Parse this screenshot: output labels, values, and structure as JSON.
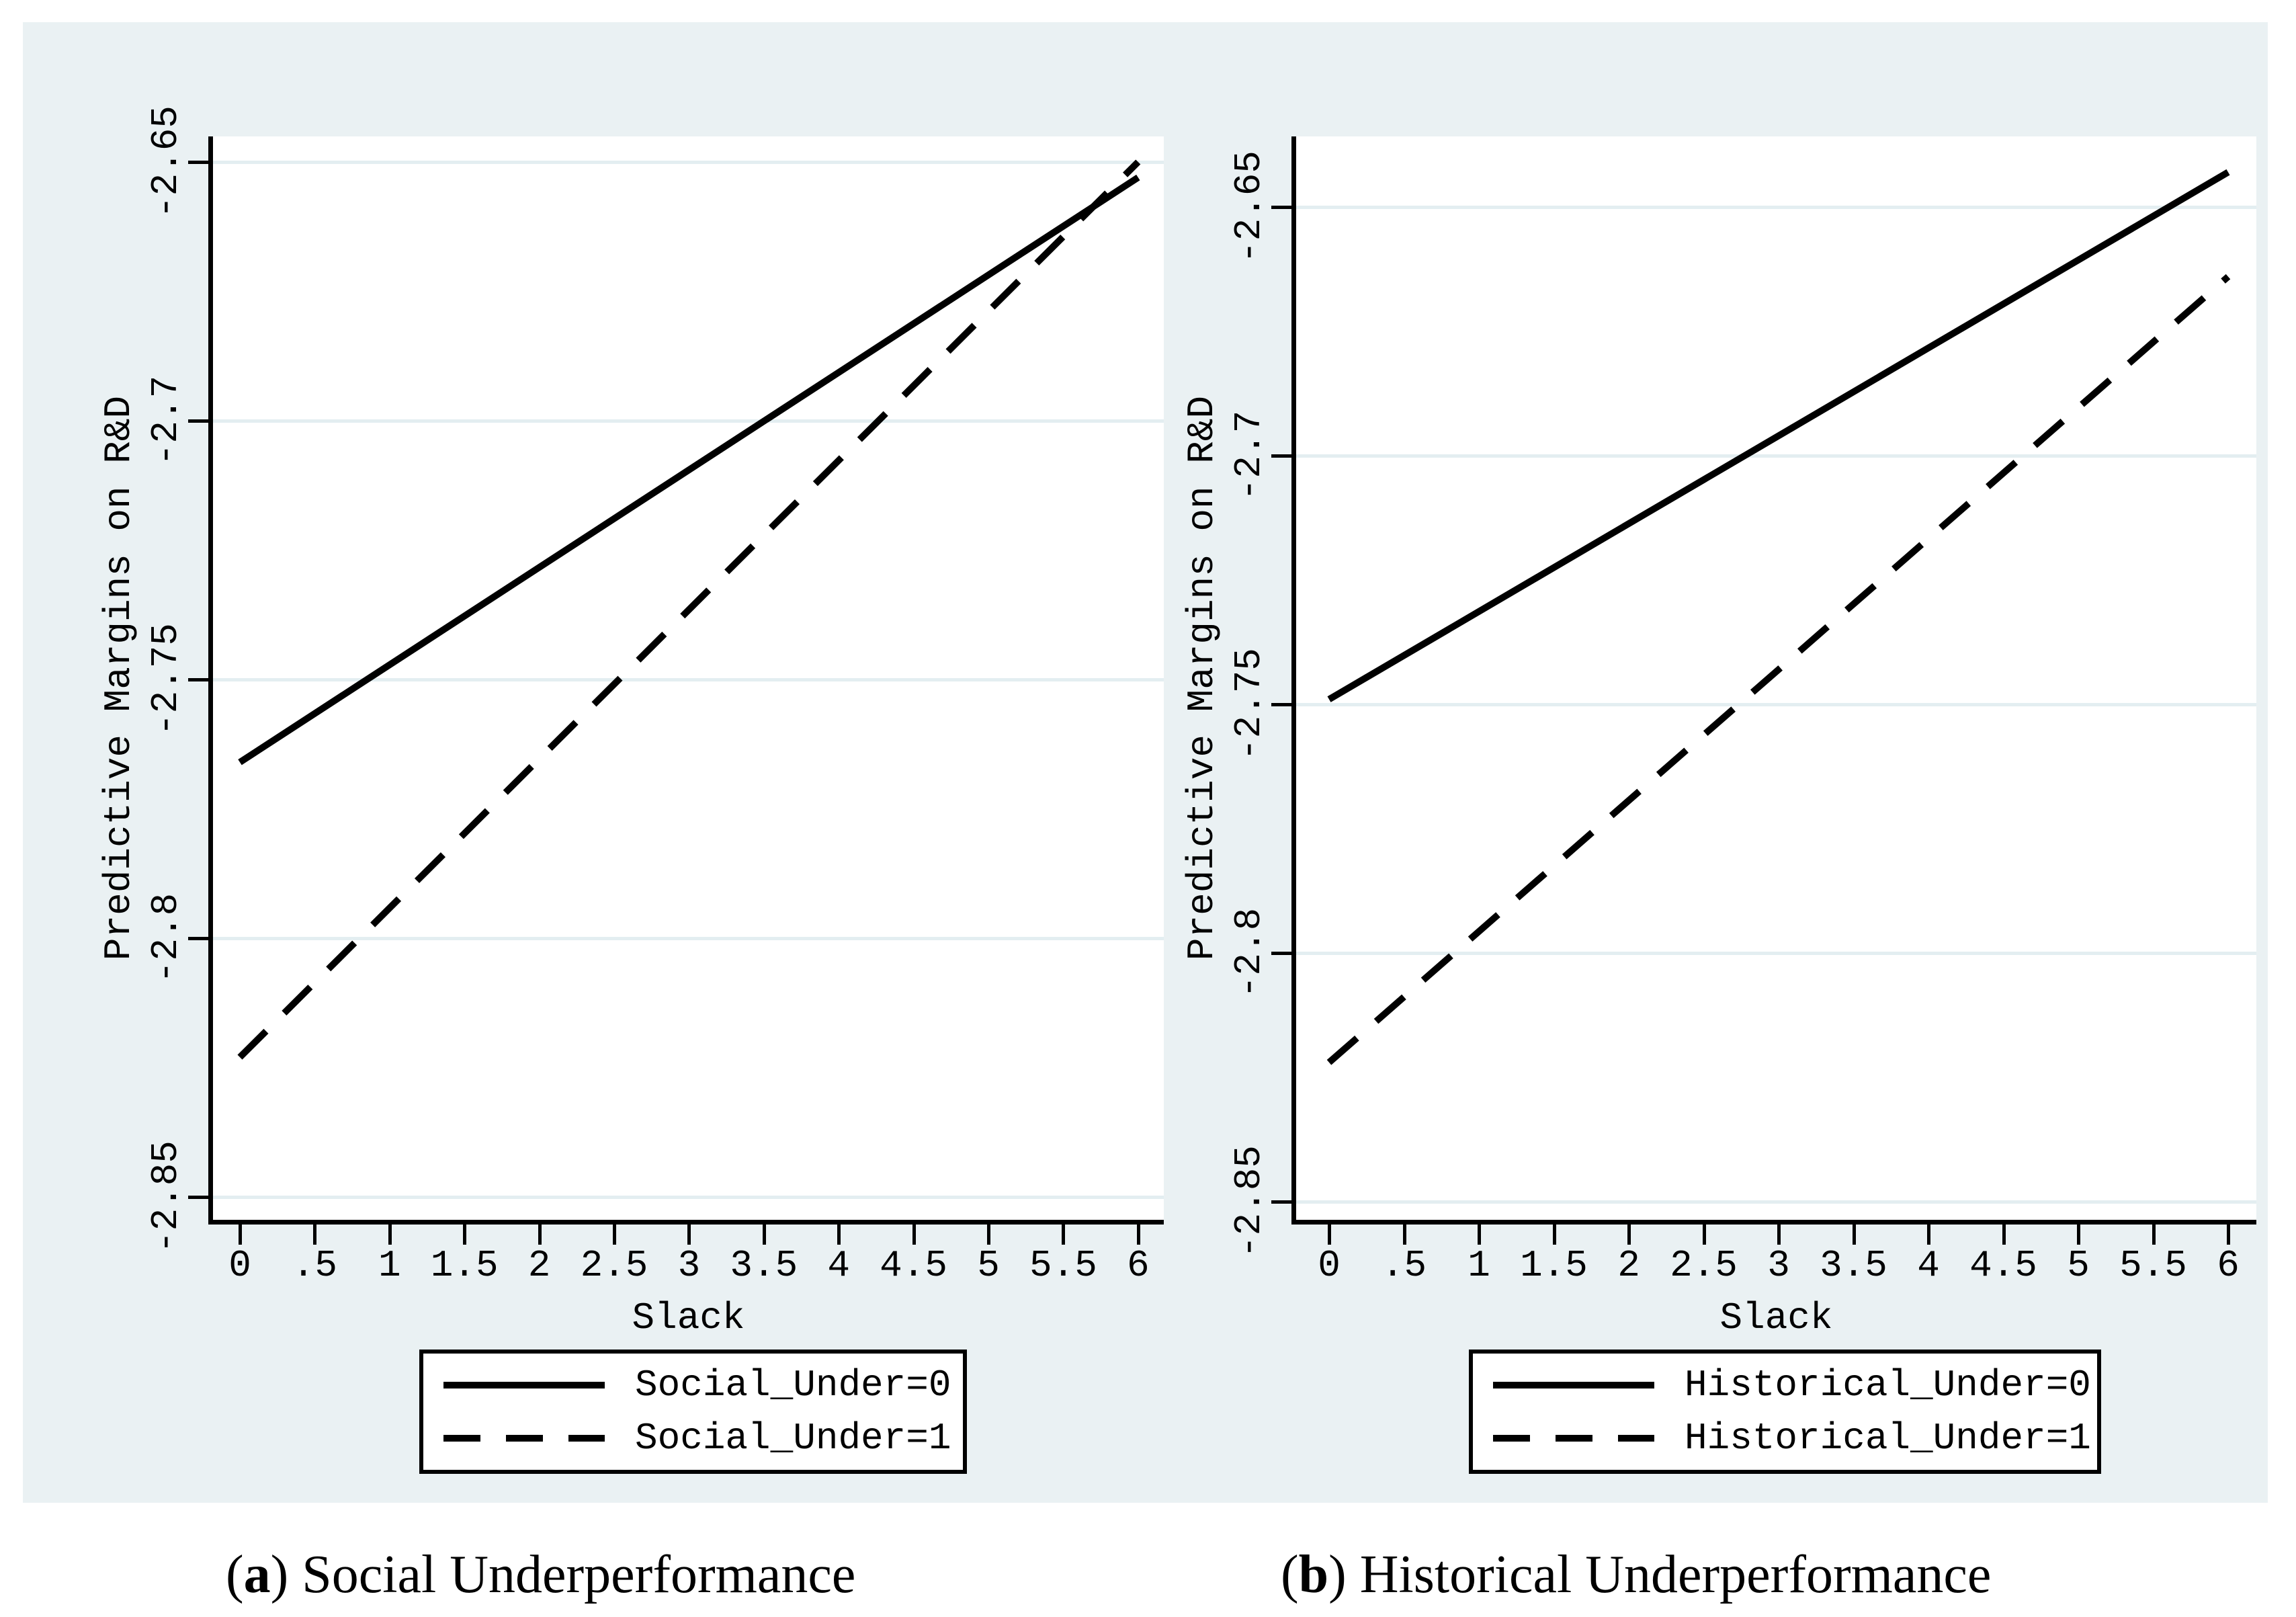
{
  "figure": {
    "background_color": "#ffffff",
    "region_color": "#eaf1f3",
    "grid_color": "#e3eef1",
    "line_color": "#000000"
  },
  "chart_data": [
    {
      "type": "line",
      "panel": "a",
      "xlabel": "Slack",
      "ylabel": "Predictive Margins on R&D",
      "x_ticks": [
        "0",
        ".5",
        "1",
        "1.5",
        "2",
        "2.5",
        "3",
        "3.5",
        "4",
        "4.5",
        "5",
        "5.5",
        "6"
      ],
      "y_ticks": [
        "-2.65",
        "-2.7",
        "-2.75",
        "-2.8",
        "-2.85"
      ],
      "x_tick_start": 0,
      "x_tick_step": 0.5,
      "y_tick_start": -2.65,
      "y_tick_step": -0.05,
      "xlim": [
        -0.18,
        6.17
      ],
      "ylim": [
        -2.855,
        -2.645
      ],
      "grid": "horizontal",
      "legend_position": "below",
      "series": [
        {
          "name": "Social_Under=0",
          "style": "solid",
          "x": [
            0,
            6
          ],
          "y": [
            -2.766,
            -2.653
          ]
        },
        {
          "name": "Social_Under=1",
          "style": "dashed",
          "x": [
            0,
            6
          ],
          "y": [
            -2.823,
            -2.65
          ]
        }
      ]
    },
    {
      "type": "line",
      "panel": "b",
      "xlabel": "Slack",
      "ylabel": "Predictive Margins on R&D",
      "x_ticks": [
        "0",
        ".5",
        "1",
        "1.5",
        "2",
        "2.5",
        "3",
        "3.5",
        "4",
        "4.5",
        "5",
        "5.5",
        "6"
      ],
      "y_ticks": [
        "-2.65",
        "-2.7",
        "-2.75",
        "-2.8",
        "-2.85"
      ],
      "x_tick_start": 0,
      "x_tick_step": 0.5,
      "y_tick_start": -2.65,
      "y_tick_step": -0.05,
      "xlim": [
        -0.22,
        6.19
      ],
      "ylim": [
        -2.854,
        -2.636
      ],
      "grid": "horizontal",
      "legend_position": "below",
      "series": [
        {
          "name": "Historical_Under=0",
          "style": "solid",
          "x": [
            0,
            6
          ],
          "y": [
            -2.749,
            -2.643
          ]
        },
        {
          "name": "Historical_Under=1",
          "style": "dashed",
          "x": [
            0,
            6
          ],
          "y": [
            -2.822,
            -2.664
          ]
        }
      ]
    }
  ],
  "captions": {
    "a": {
      "prefix": "(",
      "letter": "a",
      "suffix": ") Social Underperformance"
    },
    "b": {
      "prefix": "(",
      "letter": "b",
      "suffix": ") Historical Underperformance"
    }
  }
}
